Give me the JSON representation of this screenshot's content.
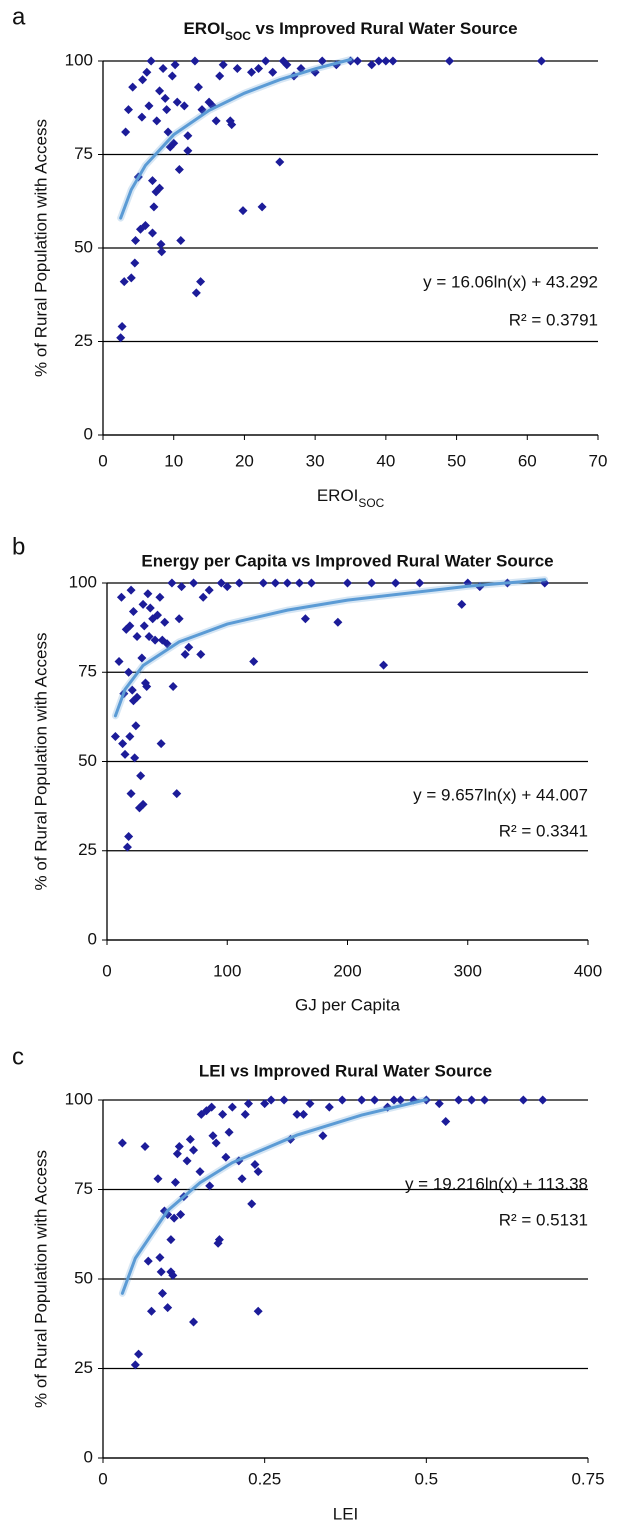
{
  "chart_data": [
    {
      "type": "scatter",
      "panel_label": "a",
      "title": [
        "EROI",
        "SOC",
        " vs Improved Rural Water Source"
      ],
      "x_label": [
        "EROI",
        "SOC"
      ],
      "y_label": "% of Rural Population with Access",
      "xlim": [
        0,
        70
      ],
      "xticks": [
        0,
        10,
        20,
        30,
        40,
        50,
        60,
        70
      ],
      "ylim": [
        0,
        100
      ],
      "yticks": [
        0,
        25,
        50,
        75,
        100
      ],
      "grid": true,
      "series": [
        {
          "color": "#1c1c99",
          "x": [
            2.5,
            2.7,
            3,
            3.2,
            3.6,
            4,
            4.2,
            4.5,
            4.6,
            5,
            5.3,
            5.5,
            5.6,
            6,
            6.2,
            6.5,
            6.8,
            7,
            7,
            7.2,
            7.5,
            7.6,
            8,
            8,
            8.2,
            8.3,
            8.5,
            8.8,
            9,
            9.2,
            9.5,
            9.8,
            10,
            10.2,
            10.5,
            10.8,
            11,
            11.5,
            12,
            12,
            13,
            13.2,
            13.5,
            13.8,
            14,
            15,
            15.5,
            16,
            16.5,
            17,
            18,
            18.2,
            19,
            19.8,
            21,
            22,
            22.5,
            23,
            24,
            25,
            25.5,
            26,
            27,
            28,
            30,
            31,
            33,
            35,
            36,
            38,
            39,
            40,
            41,
            49,
            62
          ],
          "values": [
            26,
            29,
            41,
            81,
            87,
            42,
            93,
            46,
            52,
            69,
            55,
            85,
            95,
            56,
            97,
            88,
            100,
            68,
            54,
            61,
            65,
            84,
            66,
            92,
            51,
            49,
            98,
            90,
            87,
            81,
            77,
            96,
            78,
            99,
            89,
            71,
            52,
            88,
            76,
            80,
            100,
            38,
            93,
            41,
            87,
            89,
            88,
            84,
            96,
            99,
            84,
            83,
            98,
            60,
            97,
            98,
            61,
            100,
            97,
            73,
            100,
            99,
            96,
            98,
            97,
            100,
            99,
            100,
            100,
            99,
            100,
            100,
            100,
            100,
            100
          ]
        }
      ],
      "trendline": {
        "color": "#5b9bd5",
        "x": [
          2.5,
          4,
          6,
          10,
          15,
          20,
          25,
          30,
          35
        ],
        "values": [
          58,
          65.6,
          72.1,
          80.3,
          86.8,
          91.4,
          95,
          97.9,
          100.4
        ]
      },
      "equation": "y = 16.06ln(x) + 43.292",
      "r_squared": "R² = 0.3791"
    },
    {
      "type": "scatter",
      "panel_label": "b",
      "title": "Energy per Capita vs Improved Rural Water Source",
      "x_label": "GJ per Capita",
      "y_label": "% of Rural Population with Access",
      "xlim": [
        0,
        400
      ],
      "xticks": [
        0,
        100,
        200,
        300,
        400
      ],
      "ylim": [
        0,
        100
      ],
      "yticks": [
        0,
        25,
        50,
        75,
        100
      ],
      "grid": true,
      "series": [
        {
          "color": "#1c1c99",
          "x": [
            7,
            10,
            12,
            13,
            14,
            15,
            16,
            17,
            18,
            18,
            19,
            19,
            20,
            20,
            21,
            22,
            22,
            23,
            24,
            25,
            25,
            27,
            28,
            29,
            30,
            30,
            31,
            32,
            33,
            34,
            35,
            36,
            38,
            40,
            42,
            44,
            45,
            46,
            48,
            50,
            54,
            55,
            58,
            60,
            62,
            65,
            68,
            72,
            78,
            80,
            85,
            95,
            100,
            110,
            122,
            130,
            140,
            150,
            160,
            165,
            170,
            192,
            200,
            220,
            230,
            240,
            260,
            295,
            300,
            310,
            333,
            364
          ],
          "values": [
            57,
            78,
            96,
            55,
            69,
            52,
            87,
            26,
            29,
            75,
            57,
            88,
            41,
            98,
            70,
            67,
            92,
            51,
            60,
            68,
            85,
            37,
            46,
            79,
            38,
            94,
            88,
            72,
            71,
            97,
            85,
            93,
            90,
            84,
            91,
            96,
            55,
            84,
            89,
            83,
            100,
            71,
            41,
            90,
            99,
            80,
            82,
            100,
            80,
            96,
            98,
            100,
            99,
            100,
            78,
            100,
            100,
            100,
            100,
            90,
            100,
            89,
            100,
            100,
            77,
            100,
            100,
            94,
            100,
            99,
            100,
            100
          ]
        }
      ],
      "trendline": {
        "color": "#5b9bd5",
        "x": [
          7,
          15,
          30,
          60,
          100,
          150,
          200,
          300,
          364
        ],
        "values": [
          62.8,
          70.2,
          76.9,
          83.5,
          88.5,
          92.4,
          95.2,
          99.1,
          100.9
        ]
      },
      "equation": "y = 9.657ln(x) + 44.007",
      "r_squared": "R² = 0.3341"
    },
    {
      "type": "scatter",
      "panel_label": "c",
      "title": "LEI vs Improved Rural Water Source",
      "x_label": "LEI",
      "y_label": "% of Rural Population with Access",
      "xlim": [
        0,
        0.75
      ],
      "xticks": [
        0,
        0.25,
        0.5,
        0.75
      ],
      "ylim": [
        0,
        100
      ],
      "yticks": [
        0,
        25,
        50,
        75,
        100
      ],
      "grid": true,
      "series": [
        {
          "color": "#1c1c99",
          "x": [
            0.03,
            0.05,
            0.055,
            0.065,
            0.07,
            0.075,
            0.085,
            0.088,
            0.09,
            0.092,
            0.095,
            0.1,
            0.1,
            0.105,
            0.105,
            0.108,
            0.11,
            0.112,
            0.115,
            0.118,
            0.12,
            0.125,
            0.13,
            0.135,
            0.14,
            0.14,
            0.15,
            0.152,
            0.16,
            0.165,
            0.168,
            0.17,
            0.175,
            0.178,
            0.18,
            0.185,
            0.19,
            0.195,
            0.2,
            0.21,
            0.215,
            0.22,
            0.225,
            0.23,
            0.235,
            0.24,
            0.24,
            0.25,
            0.26,
            0.28,
            0.29,
            0.3,
            0.31,
            0.32,
            0.34,
            0.35,
            0.37,
            0.4,
            0.42,
            0.44,
            0.45,
            0.46,
            0.48,
            0.5,
            0.52,
            0.53,
            0.55,
            0.57,
            0.59,
            0.65,
            0.68
          ],
          "values": [
            88,
            26,
            29,
            87,
            55,
            41,
            78,
            56,
            52,
            46,
            69,
            42,
            68,
            61,
            52,
            51,
            67,
            77,
            85,
            87,
            68,
            73,
            83,
            89,
            38,
            86,
            80,
            96,
            97,
            76,
            98,
            90,
            88,
            60,
            61,
            96,
            84,
            91,
            98,
            83,
            78,
            96,
            99,
            71,
            82,
            41,
            80,
            99,
            100,
            100,
            89,
            96,
            96,
            99,
            90,
            98,
            100,
            100,
            100,
            98,
            100,
            100,
            100,
            100,
            99,
            94,
            100,
            100,
            100,
            100,
            100
          ]
        }
      ],
      "trendline": {
        "color": "#5b9bd5",
        "x": [
          0.03,
          0.05,
          0.1,
          0.15,
          0.2,
          0.3,
          0.4,
          0.5
        ],
        "values": [
          46,
          55.8,
          69.1,
          76.9,
          82.5,
          90.2,
          95.8,
          100.1
        ]
      },
      "equation": "y = 19.216ln(x) + 113.38",
      "r_squared": "R² = 0.5131"
    }
  ]
}
